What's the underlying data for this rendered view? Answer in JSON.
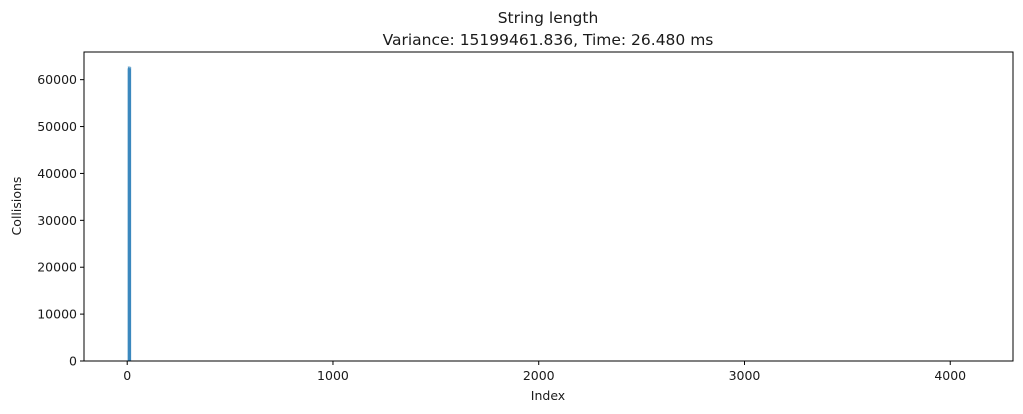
{
  "chart_data": {
    "type": "bar",
    "title": "String length",
    "subtitle": "Variance: 15199461.836, Time: 26.480 ms",
    "xlabel": "Index",
    "ylabel": "Collisions",
    "xlim": [
      -210,
      4305
    ],
    "ylim": [
      0,
      65900
    ],
    "xticks": [
      0,
      1000,
      2000,
      3000,
      4000
    ],
    "yticks": [
      0,
      10000,
      20000,
      30000,
      40000,
      50000,
      60000
    ],
    "grid": false,
    "bar_color": "#1f77b4",
    "x": [
      3,
      4,
      5,
      6,
      7,
      8,
      9,
      10,
      11,
      12,
      13,
      14,
      15,
      16,
      17,
      18
    ],
    "values": [
      62400,
      62900,
      62600,
      62500,
      62700,
      62800,
      62400,
      62600,
      62900,
      62500,
      62700,
      62300,
      62800,
      62600,
      62400,
      62700
    ]
  }
}
